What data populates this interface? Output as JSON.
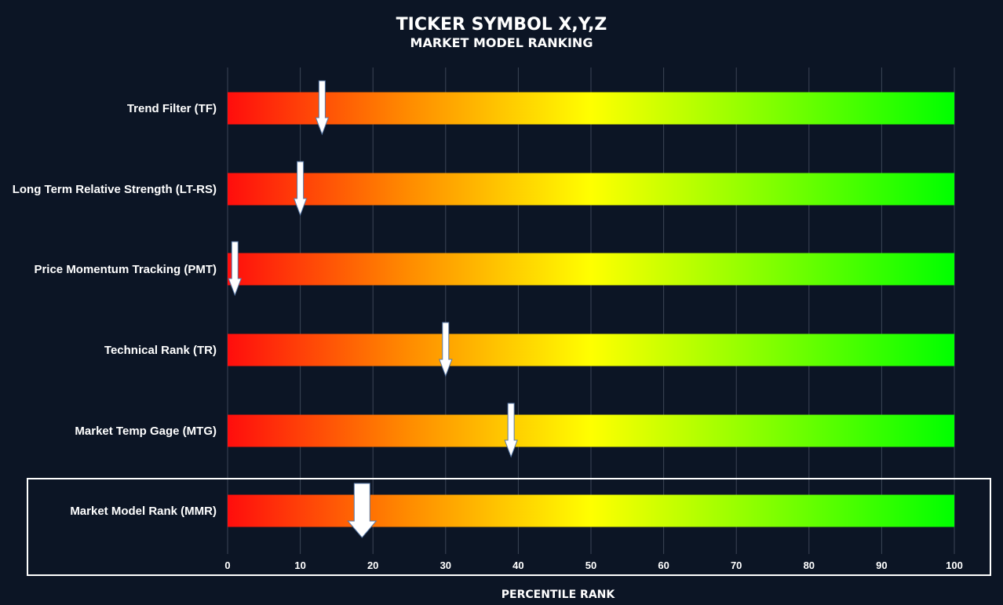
{
  "chart_data": {
    "type": "bar",
    "title": "TICKER SYMBOL X,Y,Z",
    "subtitle": "MARKET MODEL RANKING",
    "xlabel": "PERCENTILE RANK",
    "xlim": [
      0,
      100
    ],
    "xticks": [
      0,
      10,
      20,
      30,
      40,
      50,
      60,
      70,
      80,
      90,
      100
    ],
    "grid": true,
    "gradient_colors": [
      "#ff0d0d",
      "#ff8c00",
      "#ffff00",
      "#80ff00",
      "#00ff00"
    ],
    "categories": [
      "Trend Filter (TF)",
      "Long Term Relative Strength  (LT-RS)",
      "Price Momentum Tracking (PMT)",
      "Technical Rank (TR)",
      "Market Temp Gage (MTG)",
      "Market Model Rank (MMR)"
    ],
    "values": [
      13,
      10,
      1,
      30,
      39,
      18.5
    ],
    "highlighted_category": "Market Model Rank (MMR)"
  }
}
